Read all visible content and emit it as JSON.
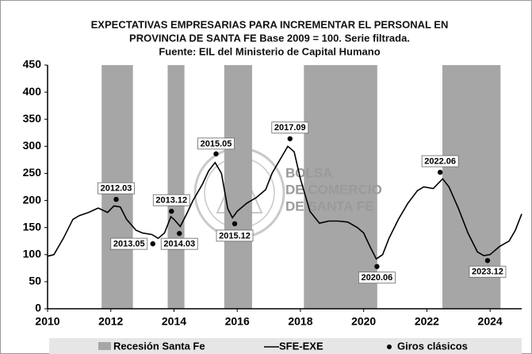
{
  "chart_data": {
    "type": "line",
    "title_lines": [
      "EXPECTATIVAS EMPRESARIAS PARA INCREMENTAR EL PERSONAL EN",
      "PROVINCIA DE SANTA FE Base 2009 = 100. Serie filtrada.",
      "Fuente: EIL del Ministerio de Capital Humano"
    ],
    "watermark": [
      "BOLSA",
      "DE COMERCIO",
      "DE SANTA FE"
    ],
    "xlim": [
      2010,
      2025
    ],
    "xticks": [
      2010,
      2012,
      2014,
      2016,
      2018,
      2020,
      2022,
      2024
    ],
    "ylim": [
      0,
      450
    ],
    "yticks": [
      0,
      50,
      100,
      150,
      200,
      250,
      300,
      350,
      400,
      450
    ],
    "recessions": {
      "name": "Recesión Santa Fe",
      "color": "#a6a6a6",
      "periods": [
        [
          2011.71,
          2012.7
        ],
        [
          2013.8,
          2014.33
        ],
        [
          2015.59,
          2016.47
        ],
        [
          2018.11,
          2020.43
        ],
        [
          2022.49,
          2024.33
        ]
      ]
    },
    "series": [
      {
        "name": "SFE-EXE",
        "color": "#000000",
        "x": [
          2010.0,
          2010.2,
          2010.5,
          2010.8,
          2011.0,
          2011.3,
          2011.6,
          2011.9,
          2012.1,
          2012.3,
          2012.5,
          2012.8,
          2013.0,
          2013.3,
          2013.5,
          2013.7,
          2013.9,
          2014.0,
          2014.2,
          2014.4,
          2014.6,
          2014.9,
          2015.1,
          2015.3,
          2015.5,
          2015.7,
          2015.85,
          2016.0,
          2016.3,
          2016.6,
          2016.9,
          2017.1,
          2017.4,
          2017.6,
          2017.8,
          2018.0,
          2018.3,
          2018.6,
          2018.9,
          2019.2,
          2019.5,
          2019.8,
          2020.0,
          2020.2,
          2020.4,
          2020.6,
          2020.8,
          2021.1,
          2021.4,
          2021.7,
          2021.9,
          2022.2,
          2022.5,
          2022.7,
          2023.0,
          2023.3,
          2023.6,
          2023.8,
          2024.0,
          2024.3,
          2024.6,
          2024.8,
          2025.0
        ],
        "values": [
          97,
          100,
          130,
          165,
          172,
          178,
          186,
          178,
          190,
          188,
          165,
          145,
          140,
          137,
          130,
          140,
          170,
          165,
          152,
          175,
          200,
          230,
          255,
          270,
          250,
          185,
          168,
          180,
          195,
          205,
          220,
          250,
          280,
          300,
          290,
          240,
          180,
          158,
          162,
          162,
          160,
          150,
          140,
          115,
          92,
          100,
          130,
          165,
          195,
          218,
          225,
          222,
          240,
          225,
          185,
          140,
          105,
          98,
          100,
          115,
          125,
          145,
          175
        ]
      },
      {
        "name": "Giros clásicos",
        "color": "#000000",
        "x": [
          2012.17,
          2013.33,
          2013.92,
          2014.17,
          2015.33,
          2015.92,
          2017.67,
          2020.42,
          2022.42,
          2023.92
        ],
        "values": [
          202,
          120,
          180,
          139,
          286,
          157,
          314,
          78,
          252,
          89
        ],
        "point_labels": [
          "2012.03",
          "2013.05",
          "2013.12",
          "2014.03",
          "2015.05",
          "2015.12",
          "2017.09",
          "2020.06",
          "2022.06",
          "2023.12"
        ]
      }
    ]
  }
}
